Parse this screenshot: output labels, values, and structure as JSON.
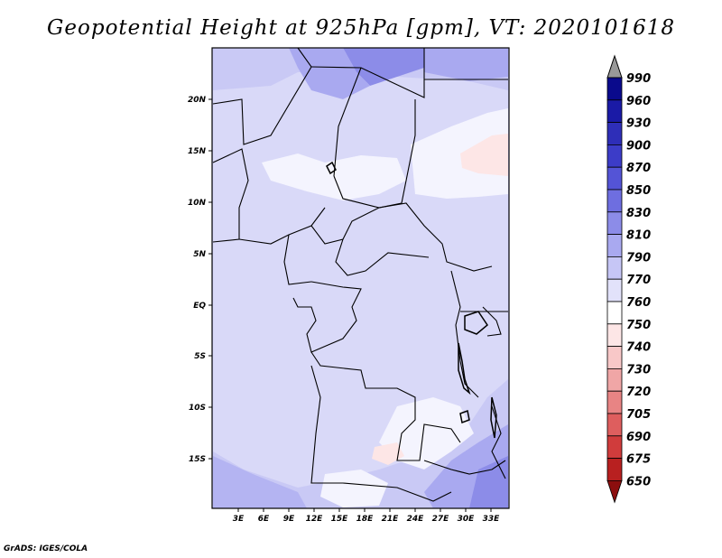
{
  "title": "Geopotential Height at 925hPa [gpm], VT: 2020101618",
  "credit": "GrADS: IGES/COLA",
  "map": {
    "lat_labels": [
      "20N",
      "15N",
      "10N",
      "5N",
      "EQ",
      "5S",
      "10S",
      "15S"
    ],
    "lon_labels": [
      "3E",
      "6E",
      "9E",
      "12E",
      "15E",
      "18E",
      "21E",
      "24E",
      "27E",
      "30E",
      "33E"
    ]
  },
  "colorbar": {
    "levels": [
      "990",
      "960",
      "930",
      "900",
      "870",
      "850",
      "830",
      "810",
      "790",
      "770",
      "760",
      "750",
      "740",
      "730",
      "720",
      "705",
      "690",
      "675",
      "650"
    ],
    "colors": [
      "#0a0a8c",
      "#1a1aa6",
      "#2e2eb8",
      "#3c3cc8",
      "#5454d6",
      "#6e6ee0",
      "#8c8ce8",
      "#a9a9f0",
      "#c6c6f6",
      "#e2e2fa",
      "#ffffff",
      "#fde6e6",
      "#f8c8c8",
      "#f0a6a6",
      "#e88484",
      "#de5e5e",
      "#d03c3c",
      "#b82020",
      "#8c0e0e"
    ],
    "top_color": "#999999"
  }
}
